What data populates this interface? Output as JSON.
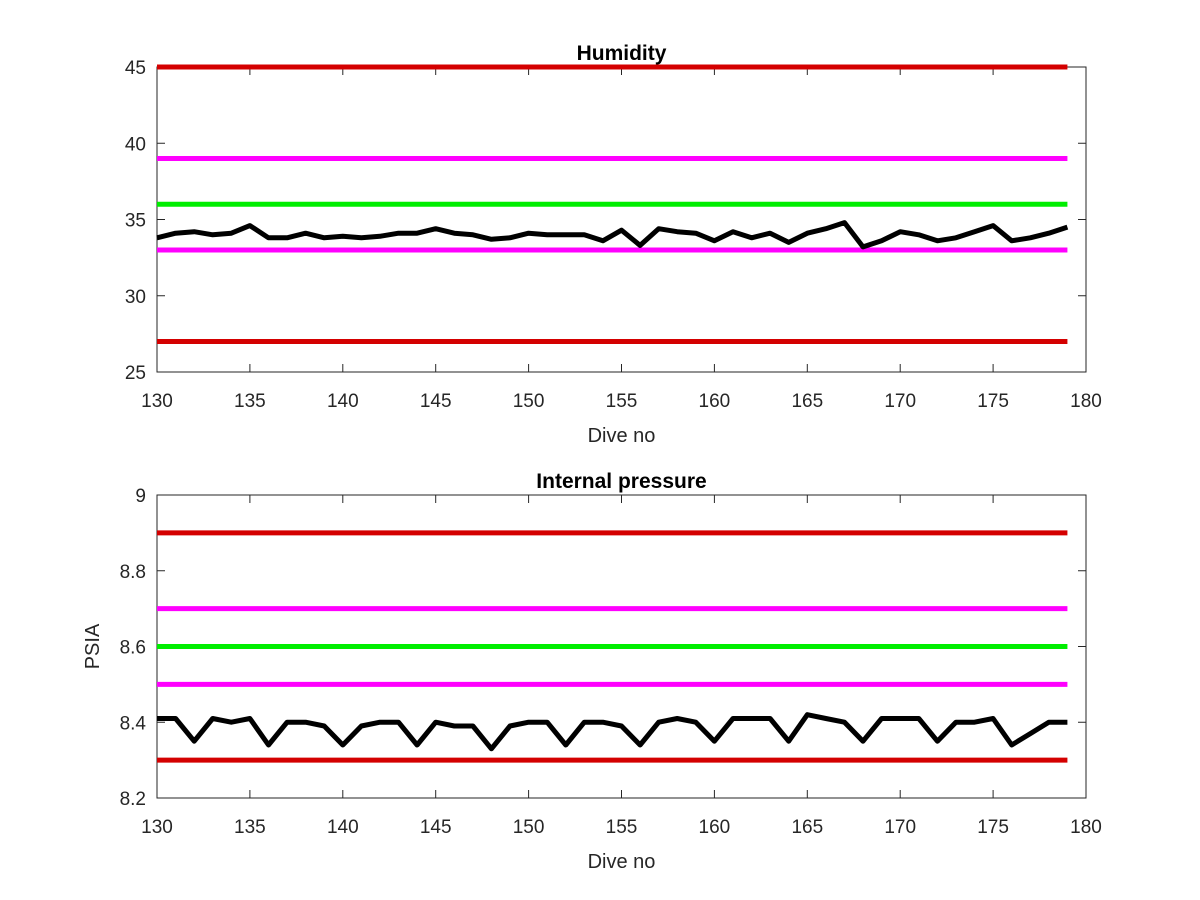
{
  "chart_data": [
    {
      "type": "line",
      "title": "Humidity",
      "xlabel": "Dive no",
      "ylabel": "",
      "xlim": [
        130,
        180
      ],
      "ylim": [
        25,
        45
      ],
      "xticks": [
        130,
        135,
        140,
        145,
        150,
        155,
        160,
        165,
        170,
        175,
        180
      ],
      "yticks": [
        25,
        30,
        35,
        40,
        45
      ],
      "grid": false,
      "legend": "none",
      "reference_lines": [
        {
          "y": 45,
          "color": "#d40000"
        },
        {
          "y": 39,
          "color": "#ff00ff"
        },
        {
          "y": 36,
          "color": "#00ee00"
        },
        {
          "y": 33,
          "color": "#ff00ff"
        },
        {
          "y": 27,
          "color": "#d40000"
        }
      ],
      "series": [
        {
          "color": "#000000",
          "x": [
            130,
            131,
            132,
            133,
            134,
            135,
            136,
            137,
            138,
            139,
            140,
            141,
            142,
            143,
            144,
            145,
            146,
            147,
            148,
            149,
            150,
            151,
            152,
            153,
            154,
            155,
            156,
            157,
            158,
            159,
            160,
            161,
            162,
            163,
            164,
            165,
            166,
            167,
            168,
            169,
            170,
            171,
            172,
            173,
            174,
            175,
            176,
            177,
            178,
            179
          ],
          "values": [
            33.8,
            34.1,
            34.2,
            34.0,
            34.1,
            34.6,
            33.8,
            33.8,
            34.1,
            33.8,
            33.9,
            33.8,
            33.9,
            34.1,
            34.1,
            34.4,
            34.1,
            34.0,
            33.7,
            33.8,
            34.1,
            34.0,
            34.0,
            34.0,
            33.6,
            34.3,
            33.3,
            34.4,
            34.2,
            34.1,
            33.6,
            34.2,
            33.8,
            34.1,
            33.5,
            34.1,
            34.4,
            34.8,
            33.2,
            33.6,
            34.2,
            34.0,
            33.6,
            33.8,
            34.2,
            34.6,
            33.6,
            33.8,
            34.1,
            34.5
          ]
        }
      ]
    },
    {
      "type": "line",
      "title": "Internal pressure",
      "xlabel": "Dive no",
      "ylabel": "PSIA",
      "xlim": [
        130,
        180
      ],
      "ylim": [
        8.2,
        9
      ],
      "xticks": [
        130,
        135,
        140,
        145,
        150,
        155,
        160,
        165,
        170,
        175,
        180
      ],
      "yticks": [
        8.2,
        8.4,
        8.6,
        8.8,
        9
      ],
      "grid": false,
      "legend": "none",
      "reference_lines": [
        {
          "y": 8.9,
          "color": "#d40000"
        },
        {
          "y": 8.7,
          "color": "#ff00ff"
        },
        {
          "y": 8.6,
          "color": "#00ee00"
        },
        {
          "y": 8.5,
          "color": "#ff00ff"
        },
        {
          "y": 8.3,
          "color": "#d40000"
        }
      ],
      "series": [
        {
          "color": "#000000",
          "x": [
            130,
            131,
            132,
            133,
            134,
            135,
            136,
            137,
            138,
            139,
            140,
            141,
            142,
            143,
            144,
            145,
            146,
            147,
            148,
            149,
            150,
            151,
            152,
            153,
            154,
            155,
            156,
            157,
            158,
            159,
            160,
            161,
            162,
            163,
            164,
            165,
            166,
            167,
            168,
            169,
            170,
            171,
            172,
            173,
            174,
            175,
            176,
            177,
            178,
            179
          ],
          "values": [
            8.41,
            8.41,
            8.35,
            8.41,
            8.4,
            8.41,
            8.34,
            8.4,
            8.4,
            8.39,
            8.34,
            8.39,
            8.4,
            8.4,
            8.34,
            8.4,
            8.39,
            8.39,
            8.33,
            8.39,
            8.4,
            8.4,
            8.34,
            8.4,
            8.4,
            8.39,
            8.34,
            8.4,
            8.41,
            8.4,
            8.35,
            8.41,
            8.41,
            8.41,
            8.35,
            8.42,
            8.41,
            8.4,
            8.35,
            8.41,
            8.41,
            8.41,
            8.35,
            8.4,
            8.4,
            8.41,
            8.34,
            8.37,
            8.4,
            8.4
          ]
        }
      ]
    }
  ]
}
